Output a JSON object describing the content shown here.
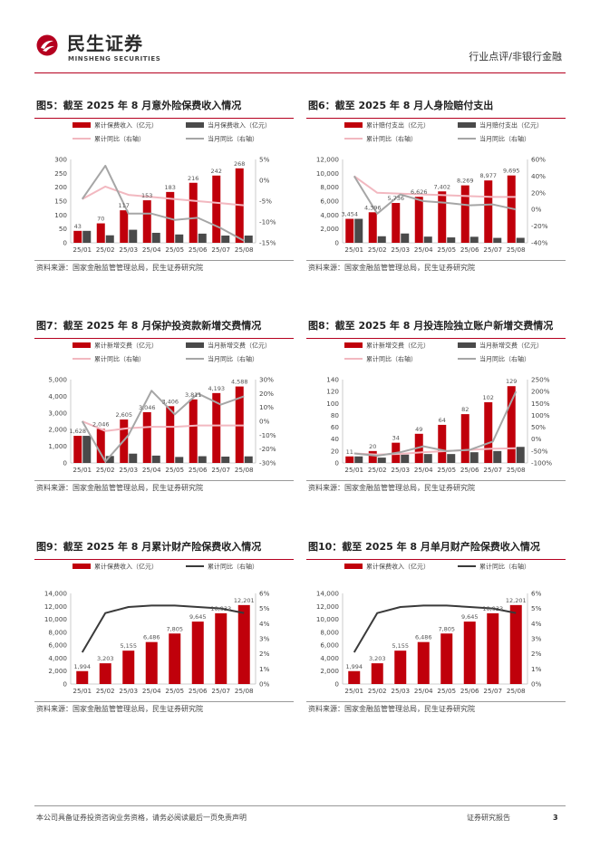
{
  "header": {
    "brand_cn": "民生证券",
    "brand_en": "MINSHENG SECURITIES",
    "category": "行业点评/非银行金融",
    "brand_color": "#b5001f"
  },
  "colors": {
    "bar_cum": "#c0000b",
    "bar_month": "#4a4a4a",
    "line_cum_pct": "#f2b8c0",
    "line_month_pct": "#a6a6a6",
    "line_dark": "#3a3a3a"
  },
  "charts": [
    {
      "title": "图5：截至 2025 年 8 月意外险保费收入情况",
      "source": "资料来源：国家金融监管管理总局，民生证券研究院",
      "legend": [
        "累计保费收入（亿元）",
        "当月保费收入（亿元）",
        "累计同比（右轴）",
        "当月同比（右轴）"
      ],
      "left_ticks": [
        "0",
        "50",
        "100",
        "150",
        "200",
        "250",
        "300"
      ],
      "right_ticks": [
        "-15%",
        "-10%",
        "-5%",
        "0%",
        "5%"
      ],
      "value_labels": [
        "43",
        "70",
        "117",
        "153",
        "183",
        "216",
        "242",
        "268"
      ],
      "x_labels": [
        "25/01",
        "25/02",
        "25/03",
        "25/04",
        "25/05",
        "25/06",
        "25/07",
        "25/08"
      ]
    },
    {
      "title": "图6：截至 2025 年 8 月人身险赔付支出",
      "source": "资料来源：国家金融监管管理总局，民生证券研究院",
      "legend": [
        "累计赔付支出（亿元）",
        "当月赔付支出（亿元）",
        "累计同比（右轴）",
        "当月同比（右轴）"
      ],
      "left_ticks": [
        "0",
        "2,000",
        "4,000",
        "6,000",
        "8,000",
        "10,000",
        "12,000"
      ],
      "right_ticks": [
        "-40%",
        "-20%",
        "0%",
        "20%",
        "40%",
        "60%"
      ],
      "value_labels": [
        "3,454",
        "4,396",
        "5,736",
        "6,626",
        "7,402",
        "8,269",
        "8,977",
        "9,695"
      ],
      "x_labels": [
        "25/01",
        "25/02",
        "25/03",
        "25/04",
        "25/05",
        "25/06",
        "25/07",
        "25/08"
      ]
    },
    {
      "title": "图7：截至 2025 年 8 月保护投资款新增交费情况",
      "source": "资料来源：国家金融监管管理总局，民生证券研究院",
      "legend": [
        "累计新增交费（亿元）",
        "当月新增交费（亿元）",
        "累计同比（右轴）",
        "当月同比（右轴）"
      ],
      "left_ticks": [
        "0",
        "1,000",
        "2,000",
        "3,000",
        "4,000",
        "5,000"
      ],
      "right_ticks": [
        "-30%",
        "-20%",
        "-10%",
        "0%",
        "10%",
        "20%",
        "30%"
      ],
      "value_labels": [
        "1,628",
        "2,046",
        "2,605",
        "3,046",
        "3,406",
        "3,811",
        "4,193",
        "4,588"
      ],
      "x_labels": [
        "25/01",
        "25/02",
        "25/03",
        "25/04",
        "25/05",
        "25/06",
        "25/07",
        "25/08"
      ]
    },
    {
      "title": "图8：截至 2025 年 8 月投连险独立账户新增交费情况",
      "source": "资料来源：国家金融监管管理总局，民生证券研究院",
      "legend": [
        "累计新增交费（亿元）",
        "当月新增交费（亿元）",
        "累计同比（右轴）",
        "当月同比（右轴）"
      ],
      "left_ticks": [
        "0",
        "20",
        "40",
        "60",
        "80",
        "100",
        "120",
        "140"
      ],
      "right_ticks": [
        "-100%",
        "-50%",
        "0%",
        "50%",
        "100%",
        "150%",
        "200%",
        "250%"
      ],
      "value_labels": [
        "11",
        "20",
        "34",
        "49",
        "64",
        "82",
        "102",
        "129"
      ],
      "x_labels": [
        "25/01",
        "25/02",
        "25/03",
        "25/04",
        "25/05",
        "25/06",
        "25/07",
        "25/08"
      ]
    },
    {
      "title": "图9：截至 2025 年 8 月累计财产险保费收入情况",
      "source": "资料来源：国家金融监管管理总局，民生证券研究院",
      "legend": [
        "累计保费收入（亿元）",
        "累计同比（右轴）"
      ],
      "left_ticks": [
        "0",
        "2,000",
        "4,000",
        "6,000",
        "8,000",
        "10,000",
        "12,000",
        "14,000"
      ],
      "right_ticks": [
        "0%",
        "1%",
        "2%",
        "3%",
        "4%",
        "5%",
        "6%"
      ],
      "value_labels": [
        "1,994",
        "3,203",
        "5,155",
        "6,486",
        "7,805",
        "9,645",
        "10,933",
        "12,201"
      ],
      "x_labels": [
        "25/01",
        "25/02",
        "25/03",
        "25/04",
        "25/05",
        "25/06",
        "25/07",
        "25/08"
      ]
    },
    {
      "title": "图10：截至 2025 年 8 月单月财产险保费收入情况",
      "source": "资料来源：国家金融监管管理总局，民生证券研究院",
      "legend": [
        "累计保费收入（亿元）",
        "累计同比（右轴）"
      ],
      "left_ticks": [
        "0",
        "2,000",
        "4,000",
        "6,000",
        "8,000",
        "10,000",
        "12,000",
        "14,000"
      ],
      "right_ticks": [
        "0%",
        "1%",
        "2%",
        "3%",
        "4%",
        "5%",
        "6%"
      ],
      "value_labels": [
        "1,994",
        "3,203",
        "5,155",
        "6,486",
        "7,805",
        "9,645",
        "10,933",
        "12,201"
      ],
      "x_labels": [
        "25/01",
        "25/02",
        "25/03",
        "25/04",
        "25/05",
        "25/06",
        "25/07",
        "25/08"
      ]
    }
  ],
  "chart_data": [
    {
      "type": "bar",
      "categories": [
        "25/01",
        "25/02",
        "25/03",
        "25/04",
        "25/05",
        "25/06",
        "25/07",
        "25/08"
      ],
      "series": [
        {
          "name": "累计保费收入（亿元）",
          "values": [
            43,
            70,
            117,
            153,
            183,
            216,
            242,
            268
          ]
        },
        {
          "name": "当月保费收入（亿元）",
          "values": [
            43,
            27,
            47,
            36,
            30,
            33,
            26,
            26
          ]
        },
        {
          "name": "累计同比（右轴）",
          "axis": "right",
          "values": [
            -4.5,
            -1.5,
            -3.5,
            -4,
            -4.5,
            -5,
            -5.5,
            -6
          ]
        },
        {
          "name": "当月同比（右轴）",
          "axis": "right",
          "values": [
            -4.5,
            3.5,
            -8,
            -8,
            -9.5,
            -9,
            -11.5,
            -14.5
          ]
        }
      ],
      "ylim": [
        0,
        300
      ],
      "ylim_right": [
        -15,
        5
      ]
    },
    {
      "type": "bar",
      "categories": [
        "25/01",
        "25/02",
        "25/03",
        "25/04",
        "25/05",
        "25/06",
        "25/07",
        "25/08"
      ],
      "series": [
        {
          "name": "累计赔付支出（亿元）",
          "values": [
            3454,
            4396,
            5736,
            6626,
            7402,
            8269,
            8977,
            9695
          ]
        },
        {
          "name": "当月赔付支出（亿元）",
          "values": [
            3454,
            942,
            1340,
            890,
            776,
            867,
            708,
            718
          ]
        },
        {
          "name": "累计同比（右轴）",
          "axis": "right",
          "values": [
            40,
            20,
            19,
            18,
            17,
            16,
            15,
            15
          ]
        },
        {
          "name": "当月同比（右轴）",
          "axis": "right",
          "values": [
            40,
            -5,
            18,
            10,
            8,
            5,
            6,
            0
          ]
        }
      ],
      "ylim": [
        0,
        12000
      ],
      "ylim_right": [
        -40,
        60
      ]
    },
    {
      "type": "bar",
      "categories": [
        "25/01",
        "25/02",
        "25/03",
        "25/04",
        "25/05",
        "25/06",
        "25/07",
        "25/08"
      ],
      "series": [
        {
          "name": "累计新增交费（亿元）",
          "values": [
            1628,
            2046,
            2605,
            3046,
            3406,
            3811,
            4193,
            4588
          ]
        },
        {
          "name": "当月新增交费（亿元）",
          "values": [
            1628,
            418,
            559,
            441,
            360,
            405,
            382,
            395
          ]
        },
        {
          "name": "累计同比（右轴）",
          "axis": "right",
          "values": [
            0,
            -7,
            -5,
            -4,
            -4,
            -3,
            -3,
            -3
          ]
        },
        {
          "name": "当月同比（右轴）",
          "axis": "right",
          "values": [
            0,
            -29,
            -10,
            22,
            5,
            20,
            12,
            18
          ]
        }
      ],
      "ylim": [
        0,
        5000
      ],
      "ylim_right": [
        -30,
        30
      ]
    },
    {
      "type": "bar",
      "categories": [
        "25/01",
        "25/02",
        "25/03",
        "25/04",
        "25/05",
        "25/06",
        "25/07",
        "25/08"
      ],
      "series": [
        {
          "name": "累计新增交费（亿元）",
          "values": [
            11,
            20,
            34,
            49,
            64,
            82,
            102,
            129
          ]
        },
        {
          "name": "当月新增交费（亿元）",
          "values": [
            11,
            9,
            14,
            15,
            15,
            18,
            20,
            27
          ]
        },
        {
          "name": "累计同比（右轴）",
          "axis": "right",
          "values": [
            -60,
            -65,
            -62,
            -55,
            -50,
            -45,
            -40,
            -38
          ]
        },
        {
          "name": "当月同比（右轴）",
          "axis": "right",
          "values": [
            -60,
            -70,
            -55,
            -30,
            -50,
            -45,
            -10,
            200
          ]
        }
      ],
      "ylim": [
        0,
        140
      ],
      "ylim_right": [
        -100,
        250
      ]
    },
    {
      "type": "bar",
      "categories": [
        "25/01",
        "25/02",
        "25/03",
        "25/04",
        "25/05",
        "25/06",
        "25/07",
        "25/08"
      ],
      "series": [
        {
          "name": "累计保费收入（亿元）",
          "values": [
            1994,
            3203,
            5155,
            6486,
            7805,
            9645,
            10933,
            12201
          ]
        },
        {
          "name": "累计同比（右轴）",
          "axis": "right",
          "values": [
            2.1,
            4.7,
            5.1,
            5.2,
            5.2,
            5.1,
            5.0,
            4.7
          ]
        }
      ],
      "ylim": [
        0,
        14000
      ],
      "ylim_right": [
        0,
        6
      ]
    },
    {
      "type": "bar",
      "categories": [
        "25/01",
        "25/02",
        "25/03",
        "25/04",
        "25/05",
        "25/06",
        "25/07",
        "25/08"
      ],
      "series": [
        {
          "name": "累计保费收入（亿元）",
          "values": [
            1994,
            3203,
            5155,
            6486,
            7805,
            9645,
            10933,
            12201
          ]
        },
        {
          "name": "累计同比（右轴）",
          "axis": "right",
          "values": [
            2.1,
            4.7,
            5.1,
            5.2,
            5.2,
            5.1,
            5.0,
            4.7
          ]
        }
      ],
      "ylim": [
        0,
        14000
      ],
      "ylim_right": [
        0,
        6
      ]
    }
  ],
  "footer": {
    "disclaimer": "本公司具备证券投资咨询业务资格，请务必阅读最后一页免责声明",
    "report_type": "证券研究报告",
    "page": "3"
  }
}
